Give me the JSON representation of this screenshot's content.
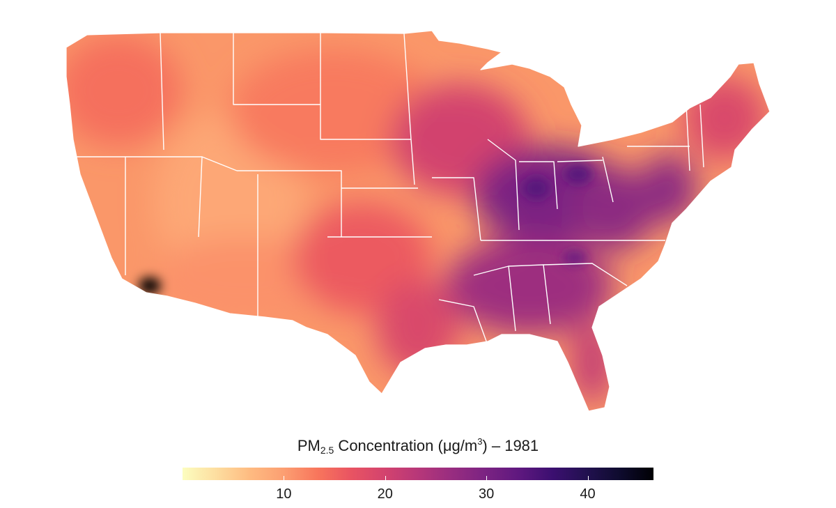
{
  "legend": {
    "label_pre": "PM",
    "label_sub": "2.5",
    "label_mid": " Concentration (μg/m",
    "label_sup": "3",
    "label_post": ") – 1981",
    "min": 0,
    "max": 46.5,
    "ticks": [
      {
        "value": 10,
        "label": "10"
      },
      {
        "value": 20,
        "label": "20"
      },
      {
        "value": 30,
        "label": "30"
      },
      {
        "value": 40,
        "label": "40"
      }
    ],
    "colormap": "magma-reversed",
    "stops": [
      "#fcfdbf",
      "#fddea0",
      "#febb81",
      "#fc9f72",
      "#f8765c",
      "#e95462",
      "#d3436e",
      "#b73779",
      "#982d80",
      "#7b2382",
      "#5f187f",
      "#3b0f70",
      "#221150",
      "#0e0b2e",
      "#000004"
    ]
  },
  "map": {
    "region": "contiguous-united-states",
    "state_border_color": "#ffffff",
    "ocean_color": "#ffffff",
    "regional_levels": {
      "pacific_northwest": 14,
      "great_basin": 9,
      "southwest_desert": 11,
      "northern_plains": 13,
      "southern_plains": 16,
      "texas_east": 19,
      "upper_midwest": 20,
      "ohio_valley": 30,
      "southeast": 26,
      "appalachians": 28,
      "mid_atlantic": 28,
      "new_england": 19,
      "florida": 22,
      "los_angeles_basin": 44
    }
  }
}
